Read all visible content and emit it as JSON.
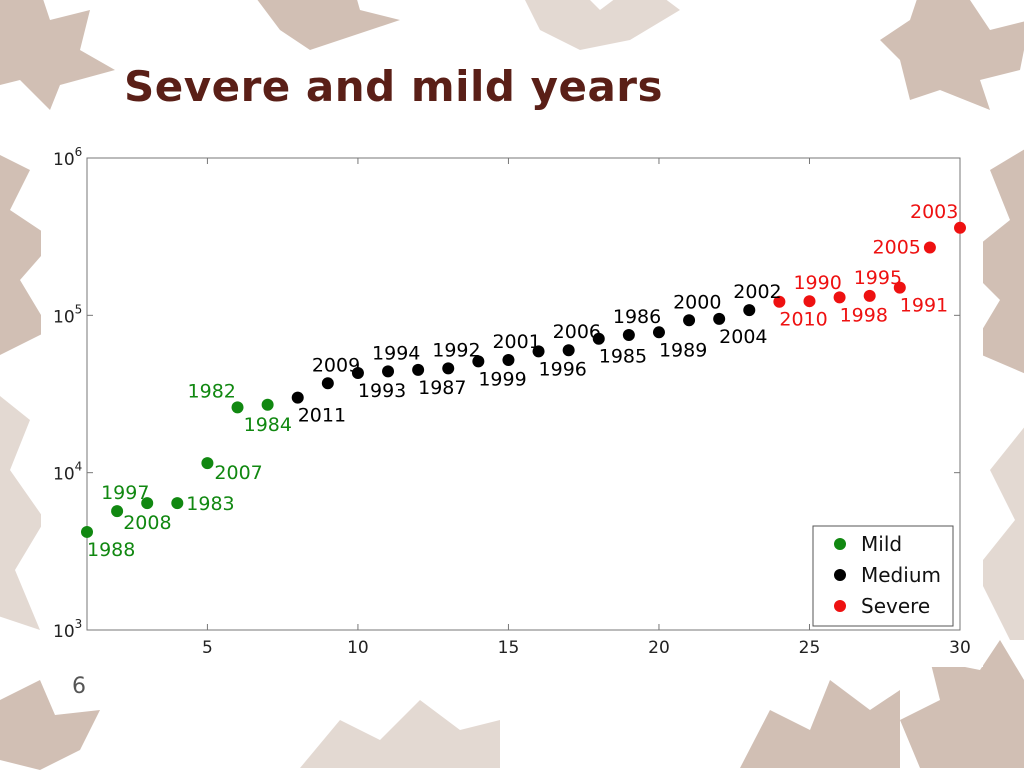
{
  "slide": {
    "title": "Severe and mild years",
    "page_number": "6"
  },
  "decoration": {
    "theme": "autumn-leaves",
    "leaf_color": "#c9b4a8",
    "title_color": "#5a1f17"
  },
  "chart_data": {
    "type": "scatter",
    "title": "",
    "xlabel": "",
    "ylabel": "",
    "xlim": [
      1,
      30
    ],
    "ylim": [
      1000,
      1000000
    ],
    "yscale": "log",
    "x_ticks": [
      5,
      10,
      15,
      20,
      25,
      30
    ],
    "y_ticks": [
      {
        "value": 1000,
        "base": "10",
        "exp": "3"
      },
      {
        "value": 10000,
        "base": "10",
        "exp": "4"
      },
      {
        "value": 100000,
        "base": "10",
        "exp": "5"
      },
      {
        "value": 1000000,
        "base": "10",
        "exp": "6"
      }
    ],
    "grid": false,
    "legend_position": "bottom-right",
    "series": [
      {
        "name": "Mild",
        "color": "#118811",
        "points": [
          {
            "x": 1,
            "y": 4200,
            "label": "1988",
            "label_pos": "below-right"
          },
          {
            "x": 2,
            "y": 5700,
            "label": "1997",
            "label_pos": "above"
          },
          {
            "x": 3,
            "y": 6400,
            "label": "2008",
            "label_pos": "below-left"
          },
          {
            "x": 4,
            "y": 6400,
            "label": "1983",
            "label_pos": "right"
          },
          {
            "x": 5,
            "y": 11500,
            "label": "2007",
            "label_pos": "right-below"
          },
          {
            "x": 6,
            "y": 26000,
            "label": "1982",
            "label_pos": "above-left"
          },
          {
            "x": 7,
            "y": 27000,
            "label": "1984",
            "label_pos": "below-left"
          }
        ]
      },
      {
        "name": "Medium",
        "color": "#000000",
        "points": [
          {
            "x": 8,
            "y": 30000,
            "label": "2011",
            "label_pos": "below-right"
          },
          {
            "x": 9,
            "y": 37000,
            "label": "2009",
            "label_pos": "above"
          },
          {
            "x": 10,
            "y": 43000,
            "label": "1993",
            "label_pos": "below-right"
          },
          {
            "x": 11,
            "y": 44000,
            "label": "1994",
            "label_pos": "above"
          },
          {
            "x": 12,
            "y": 45000,
            "label": "1987",
            "label_pos": "below-right"
          },
          {
            "x": 13,
            "y": 46000,
            "label": "1992",
            "label_pos": "above"
          },
          {
            "x": 14,
            "y": 51000,
            "label": "1999",
            "label_pos": "below-right"
          },
          {
            "x": 15,
            "y": 52000,
            "label": "2001",
            "label_pos": "above"
          },
          {
            "x": 16,
            "y": 59000,
            "label": "1996",
            "label_pos": "below-right"
          },
          {
            "x": 17,
            "y": 60000,
            "label": "2006",
            "label_pos": "above"
          },
          {
            "x": 18,
            "y": 71000,
            "label": "1985",
            "label_pos": "below-right"
          },
          {
            "x": 19,
            "y": 75000,
            "label": "1986",
            "label_pos": "above"
          },
          {
            "x": 20,
            "y": 78000,
            "label": "1989",
            "label_pos": "below-right"
          },
          {
            "x": 21,
            "y": 93000,
            "label": "2000",
            "label_pos": "above"
          },
          {
            "x": 22,
            "y": 95000,
            "label": "2004",
            "label_pos": "below-right"
          },
          {
            "x": 23,
            "y": 108000,
            "label": "2002",
            "label_pos": "above"
          }
        ]
      },
      {
        "name": "Severe",
        "color": "#ee1111",
        "points": [
          {
            "x": 24,
            "y": 122000,
            "label": "2010",
            "label_pos": "below-right"
          },
          {
            "x": 25,
            "y": 123000,
            "label": "1990",
            "label_pos": "above"
          },
          {
            "x": 26,
            "y": 130000,
            "label": "1998",
            "label_pos": "below-right"
          },
          {
            "x": 27,
            "y": 133000,
            "label": "1995",
            "label_pos": "above"
          },
          {
            "x": 28,
            "y": 150000,
            "label": "1991",
            "label_pos": "below-right"
          },
          {
            "x": 29,
            "y": 270000,
            "label": "2005",
            "label_pos": "left"
          },
          {
            "x": 30,
            "y": 360000,
            "label": "2003",
            "label_pos": "above-left"
          }
        ]
      }
    ]
  }
}
